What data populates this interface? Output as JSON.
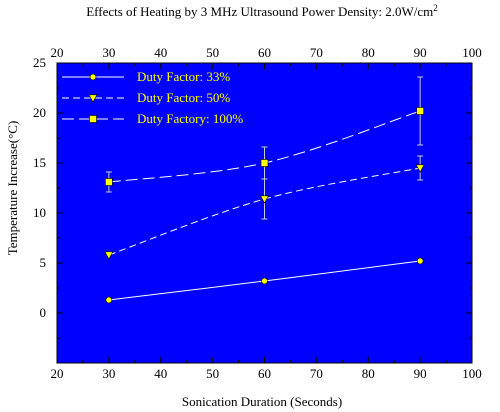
{
  "chart_data": {
    "type": "line",
    "title": "Effects of Heating by 3 MHz Ultrasound Power Density: 2.0W/cm",
    "title_superscript": "2",
    "xlabel": "Sonication Duration (Seconds)",
    "ylabel": "Temperature Increase(°C)",
    "xlim": [
      20,
      100
    ],
    "ylim": [
      -5,
      25
    ],
    "x_ticks": [
      "20",
      "30",
      "40",
      "50",
      "60",
      "70",
      "80",
      "90",
      "100"
    ],
    "y_ticks": [
      "0",
      "5",
      "10",
      "15",
      "20",
      "25"
    ],
    "x": [
      30,
      60,
      90
    ],
    "plot_background": "#0000ff",
    "series_color": "#ffff00",
    "legend_position": "top-left",
    "series": [
      {
        "name": "Duty Factor: 33%",
        "marker": "circle",
        "dash": "solid",
        "values": [
          1.3,
          3.2,
          5.2
        ],
        "errors": [
          0,
          0,
          0
        ]
      },
      {
        "name": "Duty Factor: 50%",
        "marker": "triangle-down",
        "dash": "dashed",
        "values": [
          5.8,
          11.4,
          14.5
        ],
        "errors": [
          0,
          2.0,
          1.2
        ]
      },
      {
        "name": "Duty Factory: 100%",
        "marker": "square",
        "dash": "long-dashed",
        "values": [
          13.1,
          15.0,
          20.2
        ],
        "errors": [
          1.0,
          1.6,
          3.4
        ]
      }
    ]
  }
}
